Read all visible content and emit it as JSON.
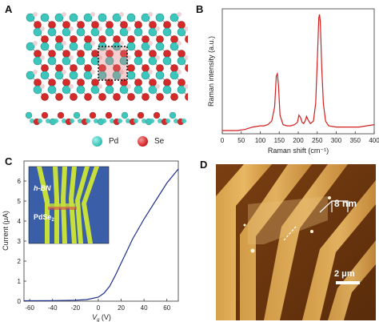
{
  "panels": {
    "a": "A",
    "b": "B",
    "c": "C",
    "d": "D"
  },
  "panel_a": {
    "legend": [
      {
        "label": "Pd",
        "color": "#3cc7bd"
      },
      {
        "label": "Se",
        "color": "#d42a2a"
      }
    ]
  },
  "chart_data": [
    {
      "type": "line",
      "panel": "B",
      "xlabel": "Raman shift (cm⁻¹)",
      "ylabel": "Raman intensity (a.u.)",
      "xlim": [
        0,
        400
      ],
      "xticks": [
        0,
        50,
        100,
        150,
        200,
        250,
        300,
        350,
        400
      ],
      "series": [
        {
          "color": "#d11f1f",
          "x": [
            0,
            20,
            40,
            60,
            80,
            100,
            110,
            120,
            130,
            138,
            142,
            145,
            148,
            152,
            160,
            170,
            180,
            190,
            198,
            202,
            206,
            210,
            214,
            218,
            222,
            226,
            232,
            240,
            246,
            250,
            254,
            256,
            258,
            262,
            266,
            272,
            280,
            300,
            320,
            340,
            360,
            380,
            400
          ],
          "y": [
            0.02,
            0.02,
            0.02,
            0.03,
            0.05,
            0.06,
            0.06,
            0.07,
            0.1,
            0.22,
            0.48,
            0.5,
            0.4,
            0.15,
            0.07,
            0.06,
            0.06,
            0.07,
            0.09,
            0.15,
            0.13,
            0.09,
            0.08,
            0.1,
            0.14,
            0.11,
            0.08,
            0.1,
            0.25,
            0.6,
            0.97,
            1.0,
            0.94,
            0.55,
            0.25,
            0.1,
            0.06,
            0.05,
            0.05,
            0.05,
            0.05,
            0.06,
            0.07
          ]
        }
      ]
    },
    {
      "type": "line",
      "panel": "C",
      "xlabel_main": "V",
      "xlabel_sub": "g",
      "xlabel_unit": " (V)",
      "ylabel_main": "Current (μA)",
      "xlim": [
        -65,
        70
      ],
      "ylim": [
        0,
        7
      ],
      "xticks": [
        -60,
        -40,
        -20,
        0,
        20,
        40,
        60
      ],
      "yticks": [
        0,
        1,
        2,
        3,
        4,
        5,
        6
      ],
      "series": [
        {
          "color": "#1e2f8a",
          "x": [
            -65,
            -40,
            -20,
            -10,
            0,
            5,
            10,
            15,
            20,
            25,
            30,
            40,
            50,
            60,
            70
          ],
          "y": [
            0.02,
            0.03,
            0.05,
            0.08,
            0.2,
            0.4,
            0.75,
            1.3,
            1.9,
            2.5,
            3.1,
            4.1,
            5.0,
            5.9,
            6.6
          ]
        }
      ]
    }
  ],
  "panel_c_inset": {
    "label_hbn": "h-BN",
    "label_pdse2_main": "PdSe",
    "label_pdse2_sub": "2"
  },
  "panel_d": {
    "height_label": "8 nm",
    "scale_label": "2 μm"
  }
}
